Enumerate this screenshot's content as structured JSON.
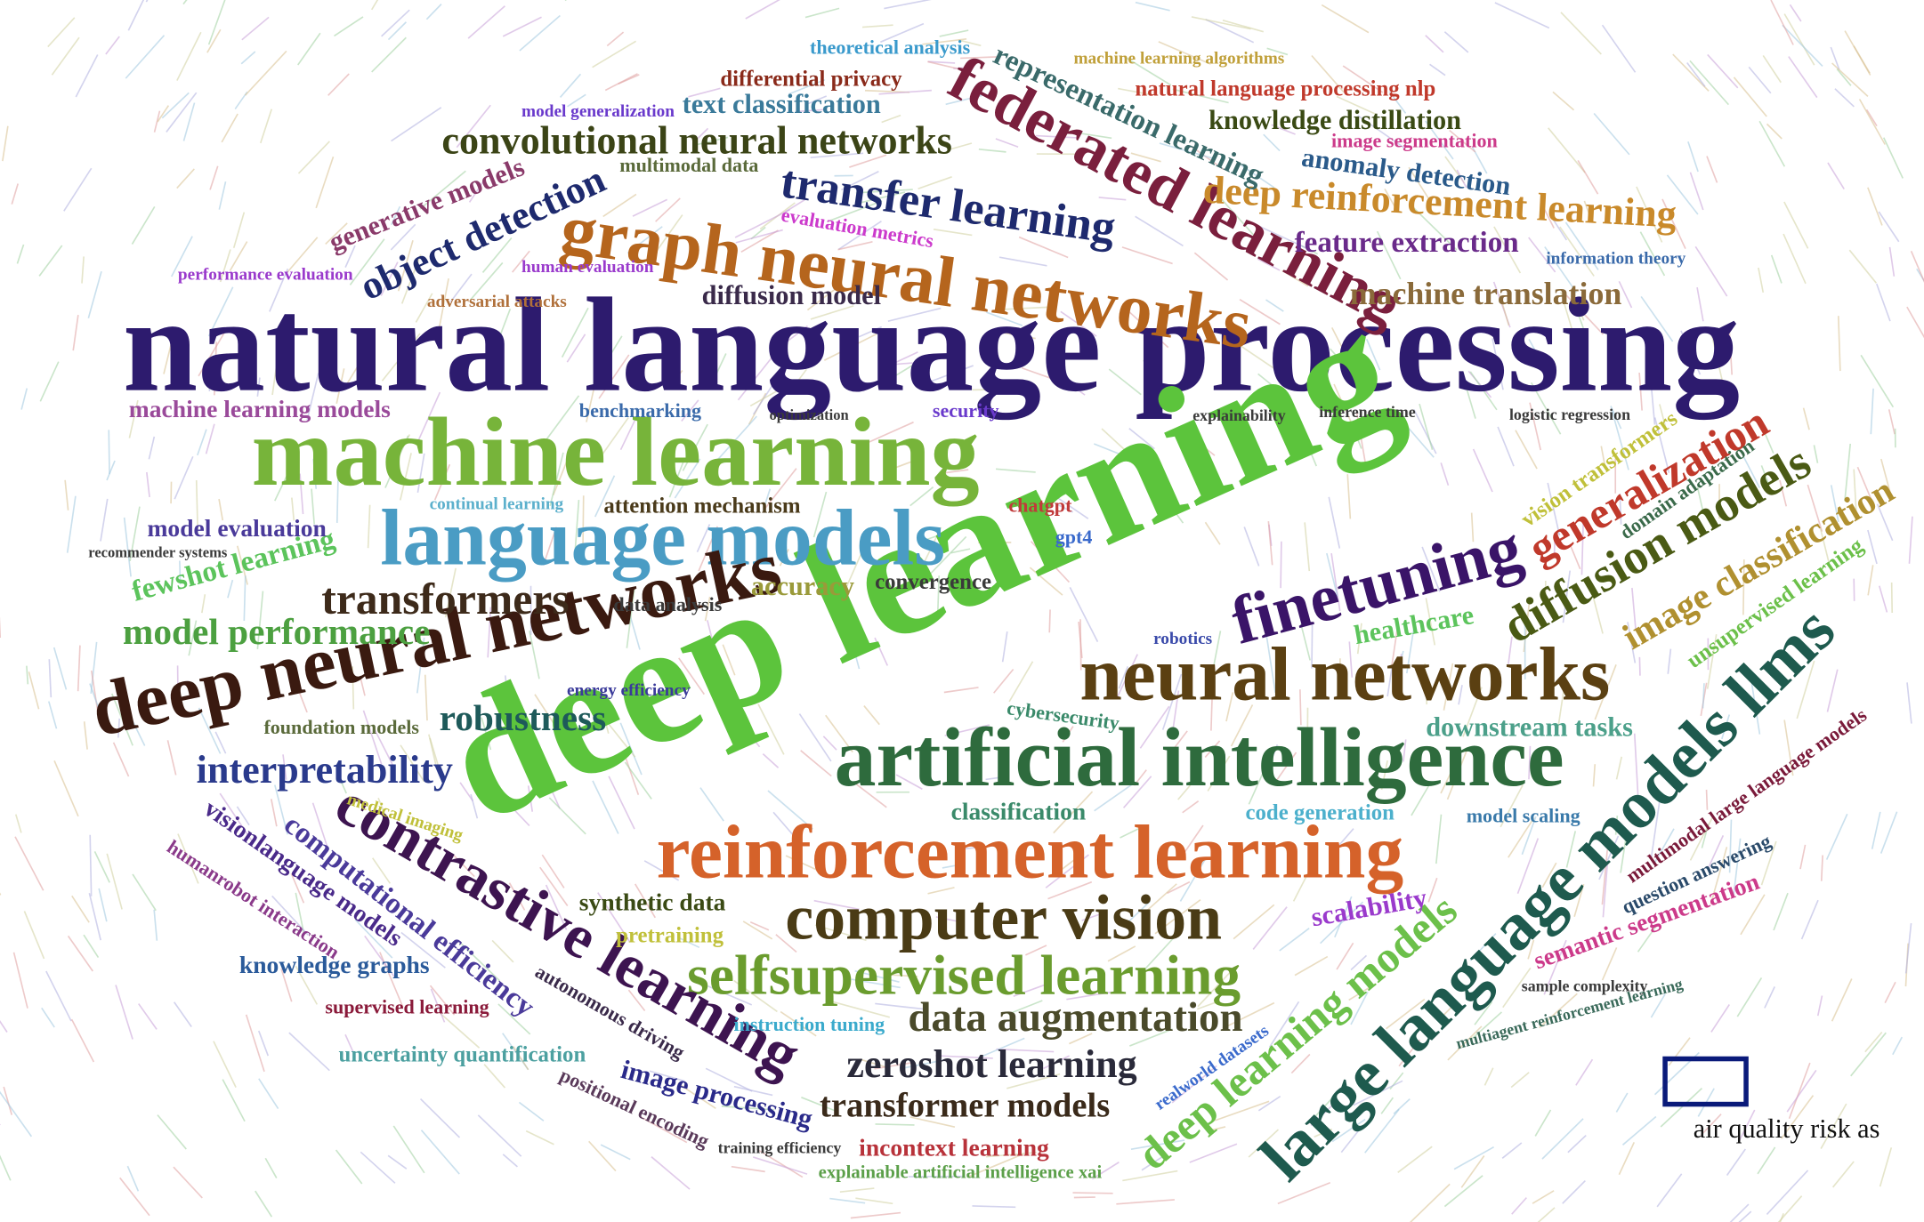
{
  "words": [
    {
      "text": "natural language processing",
      "color": "#2d1b6e"
    },
    {
      "text": "deep learning",
      "color": "#5cc43c"
    },
    {
      "text": "machine learning",
      "color": "#77b43a"
    },
    {
      "text": "language models",
      "color": "#4a9cc4"
    },
    {
      "text": "artificial intelligence",
      "color": "#2e6b3d"
    },
    {
      "text": "reinforcement learning",
      "color": "#d5622a"
    },
    {
      "text": "neural networks",
      "color": "#5b4012"
    },
    {
      "text": "deep neural networks",
      "color": "#3a1a10"
    },
    {
      "text": "graph neural networks",
      "color": "#b5651d"
    },
    {
      "text": "federated learning",
      "color": "#7a1f3d"
    },
    {
      "text": "computer vision",
      "color": "#4a3b15"
    },
    {
      "text": "selfsupervised learning",
      "color": "#6a9c2e"
    },
    {
      "text": "large language models llms",
      "color": "#1e5a4e"
    },
    {
      "text": "contrastive learning",
      "color": "#3d1450"
    },
    {
      "text": "finetuning",
      "color": "#3a1468"
    },
    {
      "text": "deep reinforcement learning",
      "color": "#c98a2b"
    },
    {
      "text": "transfer learning",
      "color": "#1e2a6e"
    },
    {
      "text": "convolutional neural networks",
      "color": "#3b4416"
    },
    {
      "text": "object detection",
      "color": "#1e2a6e"
    },
    {
      "text": "transformers",
      "color": "#3d2a1a"
    },
    {
      "text": "model performance",
      "color": "#4ca040"
    },
    {
      "text": "interpretability",
      "color": "#2a3a8c"
    },
    {
      "text": "robustness",
      "color": "#1e5a5a"
    },
    {
      "text": "data augmentation",
      "color": "#4a4a2a"
    },
    {
      "text": "zeroshot learning",
      "color": "#2a2a3a"
    },
    {
      "text": "transformer models",
      "color": "#3a2a1a"
    },
    {
      "text": "diffusion models",
      "color": "#4a5a14"
    },
    {
      "text": "generalization",
      "color": "#c0392b"
    },
    {
      "text": "image classification",
      "color": "#b09030"
    },
    {
      "text": "deep learning models",
      "color": "#6cc04a"
    },
    {
      "text": "machine translation",
      "color": "#8a6a3a"
    },
    {
      "text": "feature extraction",
      "color": "#6a2a8a"
    },
    {
      "text": "knowledge distillation",
      "color": "#3a4a14"
    },
    {
      "text": "representation learning",
      "color": "#3a6a6a"
    },
    {
      "text": "anomaly detection",
      "color": "#2a5a8a"
    },
    {
      "text": "natural language processing nlp",
      "color": "#c0392b"
    },
    {
      "text": "text classification",
      "color": "#3a7a9a"
    },
    {
      "text": "differential privacy",
      "color": "#8a2a1a"
    },
    {
      "text": "generative models",
      "color": "#8a3a6a"
    },
    {
      "text": "diffusion model",
      "color": "#3a2a4a"
    },
    {
      "text": "healthcare",
      "color": "#5cc45c"
    },
    {
      "text": "downstream tasks",
      "color": "#4ca08a"
    },
    {
      "text": "scalability",
      "color": "#9a3acc"
    },
    {
      "text": "semantic segmentation",
      "color": "#cc3a8a"
    },
    {
      "text": "uncertainty quantification",
      "color": "#4ca0a0"
    },
    {
      "text": "knowledge graphs",
      "color": "#2a5a9a"
    },
    {
      "text": "supervised learning",
      "color": "#8a1a3a"
    },
    {
      "text": "image processing",
      "color": "#2a2a8a"
    },
    {
      "text": "fewshot learning",
      "color": "#5cc45c"
    },
    {
      "text": "model evaluation",
      "color": "#4a3a9a"
    },
    {
      "text": "machine learning models",
      "color": "#9a4a9a"
    },
    {
      "text": "accuracy",
      "color": "#9a9a3a"
    },
    {
      "text": "convergence",
      "color": "#3a3a3a"
    },
    {
      "text": "attention mechanism",
      "color": "#4a3a1a"
    },
    {
      "text": "chatgpt",
      "color": "#c03a3a"
    },
    {
      "text": "gpt4",
      "color": "#3a6acc"
    },
    {
      "text": "benchmarking",
      "color": "#3a6aaa"
    },
    {
      "text": "explainability",
      "color": "#3a3a3a"
    },
    {
      "text": "logistic regression",
      "color": "#3a3a3a"
    },
    {
      "text": "classification",
      "color": "#3a8a6a"
    },
    {
      "text": "code generation",
      "color": "#4cb0cc"
    },
    {
      "text": "model scaling",
      "color": "#3a7aaa"
    },
    {
      "text": "instruction tuning",
      "color": "#3aaacc"
    },
    {
      "text": "synthetic data",
      "color": "#3a4a14"
    },
    {
      "text": "pretraining",
      "color": "#c0c03a"
    },
    {
      "text": "incontext learning",
      "color": "#b8323a"
    },
    {
      "text": "explainable artificial intelligence xai",
      "color": "#5ca04a"
    },
    {
      "text": "computational efficiency",
      "color": "#4a3a9a"
    },
    {
      "text": "visionlanguage models",
      "color": "#4a2a8a"
    },
    {
      "text": "humanrobot interaction",
      "color": "#8a3a8a"
    },
    {
      "text": "autonomous driving",
      "color": "#3a2a4a"
    },
    {
      "text": "positional encoding",
      "color": "#5a3a5a"
    },
    {
      "text": "vision transformers",
      "color": "#c0c03a"
    },
    {
      "text": "domain adaptation",
      "color": "#3a6a4a"
    },
    {
      "text": "unsupervised learning",
      "color": "#6cc04a"
    },
    {
      "text": "multimodal large language models",
      "color": "#7a1a3a"
    },
    {
      "text": "question answering",
      "color": "#2a4a6a"
    },
    {
      "text": "sample complexity",
      "color": "#3a3a3a"
    },
    {
      "text": "multiagent reinforcement learning",
      "color": "#3a6a5a"
    },
    {
      "text": "information theory",
      "color": "#3a6aaa"
    },
    {
      "text": "image segmentation",
      "color": "#cc3a8a"
    },
    {
      "text": "evaluation metrics",
      "color": "#cc3acc"
    },
    {
      "text": "human evaluation",
      "color": "#9a3acc"
    },
    {
      "text": "adversarial attacks",
      "color": "#b0703a"
    },
    {
      "text": "performance evaluation",
      "color": "#9a3acc"
    },
    {
      "text": "multimodal data",
      "color": "#5a6a3a"
    },
    {
      "text": "model generalization",
      "color": "#6a3acc"
    },
    {
      "text": "theoretical analysis",
      "color": "#3a9acc"
    },
    {
      "text": "machine learning algorithms",
      "color": "#c0a03a"
    },
    {
      "text": "security",
      "color": "#6a3acc"
    },
    {
      "text": "foundation models",
      "color": "#5a6a3a"
    },
    {
      "text": "energy efficiency",
      "color": "#3a3a9a"
    },
    {
      "text": "cybersecurity",
      "color": "#3a8a6a"
    },
    {
      "text": "training efficiency",
      "color": "#3a3a3a"
    },
    {
      "text": "data analysis",
      "color": "#3a3a3a"
    },
    {
      "text": "continual learning",
      "color": "#5cb0cc"
    },
    {
      "text": "inference time",
      "color": "#3a3a3a"
    },
    {
      "text": "realworld datasets",
      "color": "#3a6acc"
    },
    {
      "text": "medical imaging",
      "color": "#c0c03a"
    },
    {
      "text": "recommender systems",
      "color": "#3a3a3a"
    },
    {
      "text": "robotics",
      "color": "#3a4aaa"
    },
    {
      "text": "optimization",
      "color": "#3a3a3a"
    }
  ],
  "highlight": {
    "label": "air quality risk as"
  }
}
